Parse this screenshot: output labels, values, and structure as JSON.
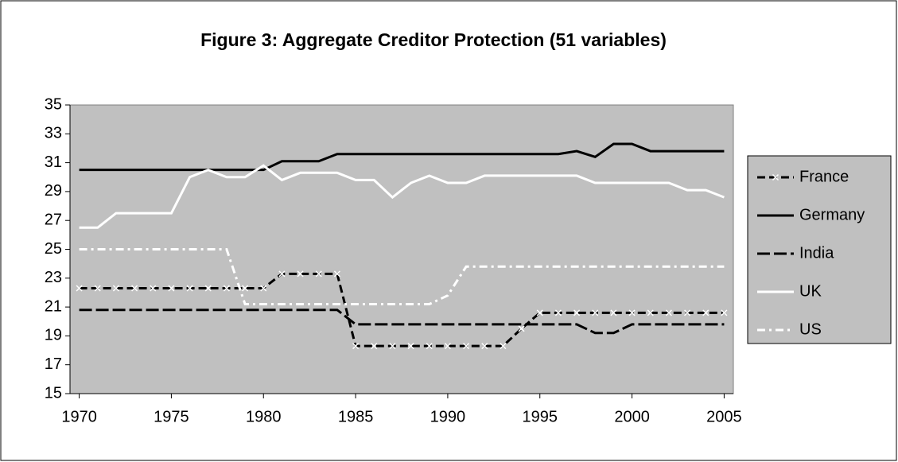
{
  "chart_data": {
    "type": "line",
    "title": "Figure 3: Aggregate Creditor Protection (51 variables)",
    "x": [
      1970,
      1971,
      1972,
      1973,
      1974,
      1975,
      1976,
      1977,
      1978,
      1979,
      1980,
      1981,
      1982,
      1983,
      1984,
      1985,
      1986,
      1987,
      1988,
      1989,
      1990,
      1991,
      1992,
      1993,
      1994,
      1995,
      1996,
      1997,
      1998,
      1999,
      2000,
      2001,
      2002,
      2003,
      2004,
      2005
    ],
    "series": [
      {
        "name": "France",
        "color": "#000000",
        "values": [
          22.3,
          22.3,
          22.3,
          22.3,
          22.3,
          22.3,
          22.3,
          22.3,
          22.3,
          22.3,
          22.3,
          23.3,
          23.3,
          23.3,
          23.3,
          18.3,
          18.3,
          18.3,
          18.3,
          18.3,
          18.3,
          18.3,
          18.3,
          18.3,
          19.5,
          20.6,
          20.6,
          20.6,
          20.6,
          20.6,
          20.6,
          20.6,
          20.6,
          20.6,
          20.6,
          20.6
        ]
      },
      {
        "name": "Germany",
        "color": "#000000",
        "values": [
          30.5,
          30.5,
          30.5,
          30.5,
          30.5,
          30.5,
          30.5,
          30.5,
          30.5,
          30.5,
          30.5,
          31.1,
          31.1,
          31.1,
          31.6,
          31.6,
          31.6,
          31.6,
          31.6,
          31.6,
          31.6,
          31.6,
          31.6,
          31.6,
          31.6,
          31.6,
          31.6,
          31.8,
          31.4,
          32.3,
          32.3,
          31.8,
          31.8,
          31.8,
          31.8,
          31.8
        ]
      },
      {
        "name": "India",
        "color": "#000000",
        "values": [
          20.8,
          20.8,
          20.8,
          20.8,
          20.8,
          20.8,
          20.8,
          20.8,
          20.8,
          20.8,
          20.8,
          20.8,
          20.8,
          20.8,
          20.8,
          19.8,
          19.8,
          19.8,
          19.8,
          19.8,
          19.8,
          19.8,
          19.8,
          19.8,
          19.8,
          19.8,
          19.8,
          19.8,
          19.2,
          19.2,
          19.8,
          19.8,
          19.8,
          19.8,
          19.8,
          19.8
        ]
      },
      {
        "name": "UK",
        "color": "#ffffff",
        "values": [
          26.5,
          26.5,
          27.5,
          27.5,
          27.5,
          27.5,
          30.0,
          30.5,
          30.0,
          30.0,
          30.8,
          29.8,
          30.3,
          30.3,
          30.3,
          29.8,
          29.8,
          28.6,
          29.6,
          30.1,
          29.6,
          29.6,
          30.1,
          30.1,
          30.1,
          30.1,
          30.1,
          30.1,
          29.6,
          29.6,
          29.6,
          29.6,
          29.6,
          29.1,
          29.1,
          28.6
        ]
      },
      {
        "name": "US",
        "color": "#ffffff",
        "values": [
          25.0,
          25.0,
          25.0,
          25.0,
          25.0,
          25.0,
          25.0,
          25.0,
          25.0,
          21.2,
          21.2,
          21.2,
          21.2,
          21.2,
          21.2,
          21.2,
          21.2,
          21.2,
          21.2,
          21.2,
          21.8,
          23.8,
          23.8,
          23.8,
          23.8,
          23.8,
          23.8,
          23.8,
          23.8,
          23.8,
          23.8,
          23.8,
          23.8,
          23.8,
          23.8,
          23.8
        ]
      }
    ],
    "xlim": [
      1969.5,
      2005.5
    ],
    "xticks": [
      1970,
      1975,
      1980,
      1985,
      1990,
      1995,
      2000,
      2005
    ],
    "ylim": [
      15,
      35
    ],
    "yticks": [
      15,
      17,
      19,
      21,
      23,
      25,
      27,
      29,
      31,
      33,
      35
    ],
    "plot_background": "#c0c0c0",
    "legend": "right"
  }
}
